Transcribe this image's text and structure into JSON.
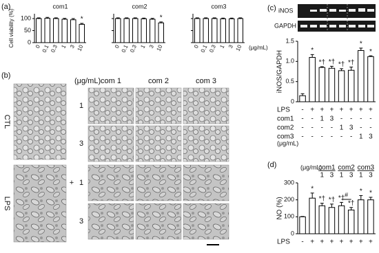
{
  "chart_data": [
    {
      "type": "bar",
      "title": "com1",
      "ylabel": "Cell viability (%)",
      "categories": [
        "0",
        "0.1",
        "0.3",
        "1",
        "3",
        "10"
      ],
      "values": [
        100,
        101,
        100,
        97,
        95,
        76
      ],
      "errors": [
        3,
        4,
        3,
        4,
        5,
        4
      ],
      "annotations": [
        null,
        null,
        null,
        null,
        null,
        "*"
      ],
      "ylim": [
        0,
        120
      ],
      "yticks": [
        0,
        50,
        100
      ],
      "color": "#ffffff"
    },
    {
      "type": "bar",
      "title": "com2",
      "categories": [
        "0",
        "0.1",
        "0.3",
        "1",
        "3",
        "10"
      ],
      "values": [
        100,
        100,
        100,
        99,
        97,
        82
      ],
      "errors": [
        3,
        3,
        3,
        3,
        4,
        4
      ],
      "annotations": [
        null,
        null,
        null,
        null,
        null,
        "*"
      ],
      "ylim": [
        0,
        120
      ],
      "yticks": [
        0,
        50,
        100
      ],
      "color": "#ffffff"
    },
    {
      "type": "bar",
      "title": "com3",
      "xunit": "(μg/mL)",
      "categories": [
        "0",
        "0.1",
        "0.3",
        "1",
        "3",
        "10"
      ],
      "values": [
        100,
        100,
        100,
        99,
        99,
        100
      ],
      "errors": [
        3,
        3,
        3,
        3,
        3,
        3
      ],
      "annotations": [
        null,
        null,
        null,
        null,
        null,
        null
      ],
      "ylim": [
        0,
        120
      ],
      "yticks": [
        0,
        50,
        100
      ],
      "color": "#ffffff"
    },
    {
      "type": "bar",
      "ylabel": "iNOS/GAPDH",
      "values": [
        0.15,
        1.1,
        0.85,
        0.83,
        0.77,
        0.78,
        1.27,
        1.12
      ],
      "errors": [
        0.05,
        0.07,
        0.02,
        0.05,
        0.05,
        0.08,
        0.06,
        0.02
      ],
      "annotations": [
        null,
        "*",
        "*†",
        "*†",
        "*†",
        "*†",
        "*",
        "*"
      ],
      "ylim": [
        0,
        1.5
      ],
      "yticks": [
        0,
        0.5,
        {
          "value": 1,
          "label": "1.0"
        },
        1.5
      ],
      "color": "#ffffff",
      "table": [
        {
          "label": "LPS",
          "cells": [
            "-",
            "+",
            "+",
            "+",
            "+",
            "+",
            "+",
            "+"
          ]
        },
        {
          "label": "com1",
          "cells": [
            "-",
            "-",
            "1",
            "3",
            "-",
            "-",
            "-",
            "-"
          ]
        },
        {
          "label": "com2",
          "cells": [
            "-",
            "-",
            "-",
            "-",
            "1",
            "3",
            "-",
            "-"
          ]
        },
        {
          "label": "com3",
          "cells": [
            "-",
            "-",
            "-",
            "-",
            "-",
            "-",
            "1",
            "3"
          ]
        }
      ],
      "unit": "(μg/mL)"
    },
    {
      "type": "bar",
      "ylabel": "NO (%)",
      "values": [
        100,
        210,
        165,
        155,
        165,
        140,
        200,
        200
      ],
      "errors": [
        2,
        30,
        15,
        20,
        20,
        15,
        25,
        15
      ],
      "annotations": [
        null,
        "*",
        "*†",
        "*†",
        "*†",
        "*†",
        "*",
        "*"
      ],
      "ylim": [
        0,
        300
      ],
      "yticks": [
        0,
        100,
        200,
        300
      ],
      "color": "#ffffff",
      "groups": [
        {
          "label": "com1",
          "doses": [
            "1",
            "3"
          ]
        },
        {
          "label": "com2",
          "doses": [
            "1",
            "3"
          ]
        },
        {
          "label": "com3",
          "doses": [
            "1",
            "3"
          ]
        }
      ],
      "unit": "(μg/mL)",
      "note": "#",
      "table": [
        {
          "label": "LPS",
          "cells": [
            "-",
            "+",
            "+",
            "+",
            "+",
            "+",
            "+",
            "+"
          ]
        }
      ]
    }
  ],
  "figure": {
    "panel_labels": [
      "(a)",
      "(b)",
      "(c)",
      "(d)"
    ],
    "blot": {
      "bands": [
        "iNOS",
        "GAPDH"
      ]
    },
    "micrographs": {
      "unit": "(μg/mL)",
      "columns": [
        "com 1",
        "com 2",
        "com 3"
      ],
      "rows": [
        "CTL",
        "LPS"
      ],
      "doses": [
        "1",
        "3",
        "1",
        "3"
      ],
      "plus": "+"
    }
  }
}
